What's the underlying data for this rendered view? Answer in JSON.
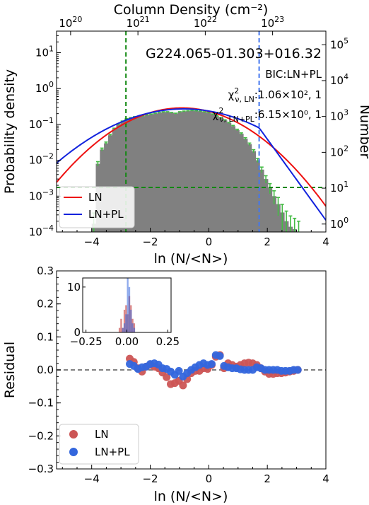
{
  "chart_data": [
    {
      "type": "histogram",
      "title": "G224.065-01.303+016.32",
      "annotation_model": "BIC:LN+PL",
      "chi2": [
        {
          "label": "χ²_{ν,LN}",
          "label_main": "χ",
          "label_sup": "2",
          "label_sub": "ν, LN",
          "value_text": ":1.06×10², 1"
        },
        {
          "label": "χ²_{ν,LN+PL}",
          "label_main": "χ",
          "label_sup": "2",
          "label_sub": "ν, LN+PL",
          "value_text": ":6.15×10⁰, 1"
        }
      ],
      "xlabel": "ln (N/<N>)",
      "ylabel": "Probability density",
      "ylabel_right": "Number",
      "xlabel_top": "Column Density (cm⁻²)",
      "xlim": [
        -5.2,
        4.0
      ],
      "ylim_log": [
        0.0001,
        40
      ],
      "log_y": true,
      "x_ticks": [
        -4,
        -2,
        0,
        2,
        4
      ],
      "y_ticks": [
        0.0001,
        0.001,
        0.01,
        0.1,
        1,
        10
      ],
      "y_tick_labels": [
        {
          "base": "10",
          "exp": "−4"
        },
        {
          "base": "10",
          "exp": "−3"
        },
        {
          "base": "10",
          "exp": "−2"
        },
        {
          "base": "10",
          "exp": "−1"
        },
        {
          "base": "10",
          "exp": "0"
        },
        {
          "base": "10",
          "exp": "1"
        }
      ],
      "right_ticks": [
        {
          "base": "10",
          "exp": "0",
          "count": 1
        },
        {
          "base": "10",
          "exp": "1",
          "count": 10
        },
        {
          "base": "10",
          "exp": "2",
          "count": 100
        },
        {
          "base": "10",
          "exp": "3",
          "count": 1000
        },
        {
          "base": "10",
          "exp": "4",
          "count": 10000
        },
        {
          "base": "10",
          "exp": "5",
          "count": 100000
        }
      ],
      "count_per_density": 6000,
      "top_ticks": [
        {
          "base": "10",
          "exp": "20",
          "lnx": -4.72
        },
        {
          "base": "10",
          "exp": "21",
          "lnx": -2.42
        },
        {
          "base": "10",
          "exp": "22",
          "lnx": -0.12
        },
        {
          "base": "10",
          "exp": "23",
          "lnx": 2.18
        }
      ],
      "histogram": {
        "bin_width": 0.14,
        "centers": [
          -3.93,
          -3.79,
          -3.65,
          -3.51,
          -3.37,
          -3.23,
          -3.09,
          -2.95,
          -2.81,
          -2.67,
          -2.53,
          -2.39,
          -2.25,
          -2.11,
          -1.97,
          -1.83,
          -1.69,
          -1.55,
          -1.41,
          -1.27,
          -1.13,
          -0.99,
          -0.85,
          -0.71,
          -0.57,
          -0.43,
          -0.29,
          -0.15,
          -0.01,
          0.13,
          0.27,
          0.41,
          0.55,
          0.69,
          0.83,
          0.97,
          1.11,
          1.25,
          1.39,
          1.53,
          1.67,
          1.81,
          1.95,
          2.09,
          2.23,
          2.37,
          2.51,
          2.65,
          2.79,
          2.93,
          3.07
        ],
        "density": [
          0.00017,
          0.008,
          0.02,
          0.03,
          0.05,
          0.075,
          0.1,
          0.12,
          0.14,
          0.15,
          0.16,
          0.165,
          0.17,
          0.18,
          0.19,
          0.2,
          0.21,
          0.22,
          0.22,
          0.21,
          0.2,
          0.22,
          0.23,
          0.235,
          0.24,
          0.235,
          0.23,
          0.22,
          0.21,
          0.19,
          0.17,
          0.15,
          0.13,
          0.11,
          0.09,
          0.07,
          0.055,
          0.04,
          0.028,
          0.018,
          0.01,
          0.0055,
          0.003,
          0.0017,
          0.001,
          0.0006,
          0.00035,
          0.0002,
          0.00014,
          0.00012,
          0.0001
        ]
      },
      "curves": [
        {
          "name": "LN",
          "color": "#ee1111",
          "mu": -0.92,
          "sigma": 1.385,
          "amp": 0.288
        },
        {
          "name": "LN+PL",
          "color": "#1122dd",
          "mu": -0.85,
          "sigma": 1.65,
          "amp": 0.27,
          "pl_start": 1.72,
          "pl_slope": -2.6
        }
      ],
      "vlines": [
        {
          "x": -2.83,
          "color": "#118811",
          "style": "dashed"
        },
        {
          "x": 1.72,
          "color": "#4477ee",
          "style": "dashed"
        }
      ],
      "hlines": [
        {
          "y": 0.00175,
          "color": "#118811",
          "style": "dashed"
        }
      ],
      "legend": {
        "placement": "lower-left",
        "entries": [
          "LN",
          "LN+PL"
        ]
      },
      "colors": {
        "bars": "#808080",
        "errorbars": "#44bb44"
      }
    },
    {
      "type": "scatter",
      "xlabel": "ln (N/<N>)",
      "ylabel": "Residual",
      "xlim": [
        -5.2,
        4.0
      ],
      "ylim": [
        -0.3,
        0.3
      ],
      "x_ticks": [
        -4,
        -2,
        0,
        2,
        4
      ],
      "y_ticks": [
        -0.3,
        -0.2,
        -0.1,
        0.0,
        0.1,
        0.2,
        0.3
      ],
      "y_tick_labels": [
        "−0.3",
        "−0.2",
        "−0.1",
        "0.0",
        "0.1",
        "0.2",
        "0.3"
      ],
      "x_tick_labels": [
        "−4",
        "−2",
        "0",
        "2",
        "4"
      ],
      "zero_line": {
        "y": 0,
        "color": "#808080",
        "style": "dashed"
      },
      "series": [
        {
          "name": "LN",
          "color": "#cc5555",
          "x": [
            -2.7,
            -2.56,
            -2.42,
            -2.28,
            -2.14,
            -2.0,
            -1.86,
            -1.72,
            -1.58,
            -1.44,
            -1.3,
            -1.16,
            -1.02,
            -0.88,
            -0.74,
            -0.6,
            -0.46,
            -0.32,
            -0.18,
            -0.04,
            0.1,
            0.24,
            0.38,
            0.52,
            0.66,
            0.8,
            0.94,
            1.08,
            1.22,
            1.36,
            1.5,
            1.64,
            1.78,
            1.92,
            2.06,
            2.2,
            2.34,
            2.48,
            2.62,
            2.76,
            2.9,
            3.04
          ],
          "y": [
            0.034,
            0.024,
            0.005,
            -0.005,
            0.01,
            0.015,
            0.01,
            0.005,
            -0.008,
            -0.022,
            -0.043,
            -0.04,
            -0.033,
            -0.047,
            -0.028,
            -0.01,
            -0.003,
            -0.003,
            0.005,
            0.003,
            0.015,
            0.04,
            0.045,
            0.005,
            0.02,
            0.015,
            0.01,
            0.015,
            0.02,
            0.022,
            0.02,
            0.015,
            0.005,
            -0.005,
            -0.012,
            -0.012,
            -0.01,
            -0.01,
            -0.008,
            -0.005,
            -0.003,
            0.0
          ]
        },
        {
          "name": "LN+PL",
          "color": "#3366dd",
          "x": [
            -2.7,
            -2.56,
            -2.42,
            -2.28,
            -2.14,
            -2.0,
            -1.86,
            -1.72,
            -1.58,
            -1.44,
            -1.3,
            -1.16,
            -1.02,
            -0.88,
            -0.74,
            -0.6,
            -0.46,
            -0.32,
            -0.18,
            -0.04,
            0.1,
            0.24,
            0.38,
            0.52,
            0.66,
            0.8,
            0.94,
            1.08,
            1.22,
            1.36,
            1.5,
            1.64,
            1.78,
            1.92,
            2.06,
            2.2,
            2.34,
            2.48,
            2.62,
            2.76,
            2.9,
            3.04
          ],
          "y": [
            0.018,
            0.012,
            0.003,
            0.008,
            0.01,
            0.018,
            0.02,
            0.016,
            0.005,
            0.003,
            -0.005,
            -0.015,
            -0.003,
            -0.02,
            -0.01,
            0.0,
            0.008,
            0.015,
            0.02,
            0.015,
            0.018,
            0.045,
            0.042,
            0.012,
            0.008,
            0.005,
            0.005,
            0.002,
            0.0,
            0.0,
            0.0,
            0.008,
            0.005,
            0.0,
            0.0,
            0.0,
            0.0,
            -0.003,
            -0.003,
            -0.003,
            0.0,
            0.0
          ]
        }
      ],
      "legend": {
        "placement": "lower-left",
        "entries": [
          "LN",
          "LN+PL"
        ]
      },
      "inset": {
        "type": "histogram",
        "xlim": [
          -0.27,
          0.27
        ],
        "ylim": [
          0,
          12
        ],
        "x_ticks": [
          -0.25,
          0.0,
          0.25
        ],
        "x_tick_labels": [
          "−0.25",
          "0.00",
          "0.25"
        ],
        "y_ticks": [
          0,
          10
        ],
        "y_tick_labels": [
          "0",
          "10"
        ],
        "bins": [
          -0.05,
          -0.04,
          -0.03,
          -0.02,
          -0.01,
          0.0,
          0.01,
          0.02,
          0.03,
          0.04,
          0.05
        ],
        "counts_LN": [
          1,
          3,
          1,
          5,
          6,
          4,
          8,
          6,
          3,
          2
        ],
        "counts_LNPL": [
          0,
          0,
          1,
          2,
          4,
          12,
          10,
          5,
          2,
          1
        ]
      }
    }
  ]
}
